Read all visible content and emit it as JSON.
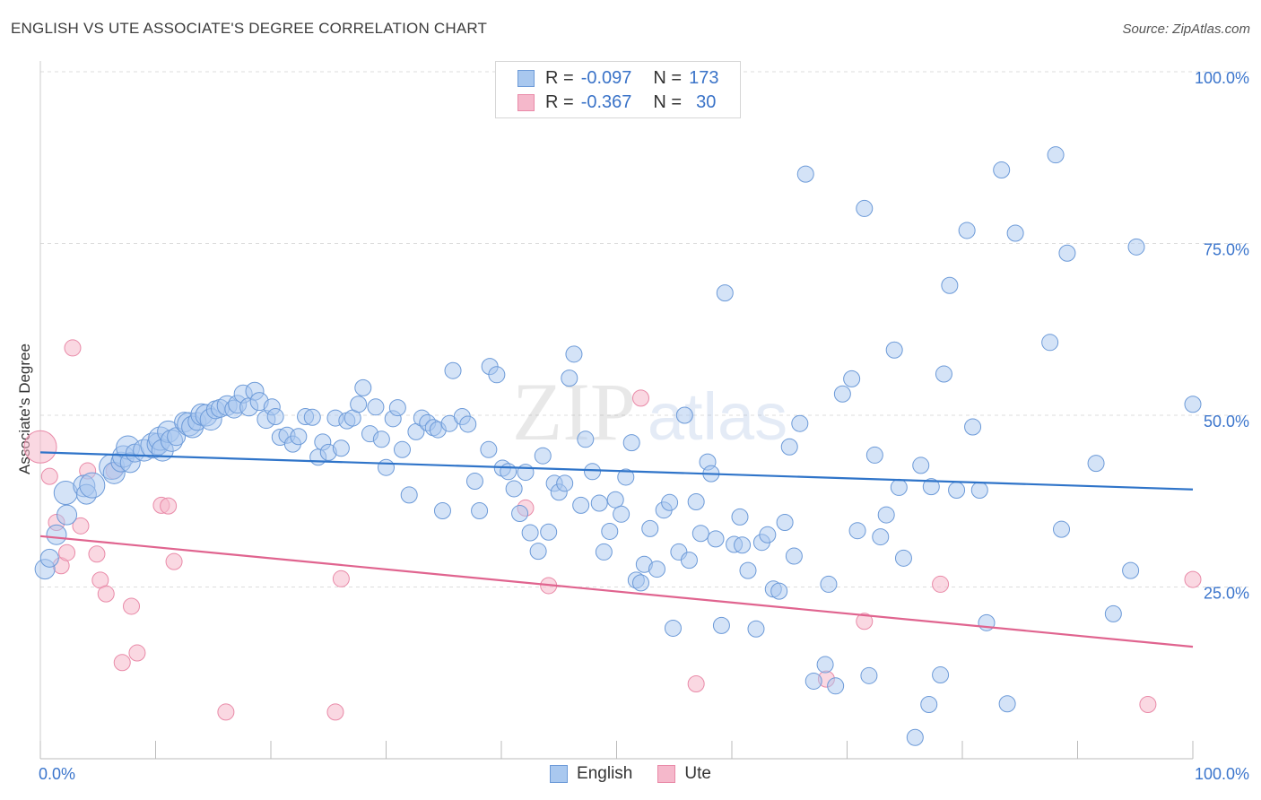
{
  "header": {
    "title": "ENGLISH VS UTE ASSOCIATE'S DEGREE CORRELATION CHART",
    "source": "Source: ZipAtlas.com"
  },
  "watermark": {
    "zip": "ZIP",
    "atlas": "atlas"
  },
  "legend_top": {
    "english": {
      "r_label": "R =",
      "r_value": "-0.097",
      "n_label": "N =",
      "n_value": "173"
    },
    "ute": {
      "r_label": "R =",
      "r_value": "-0.367",
      "n_label": "N =",
      "n_value": "30"
    }
  },
  "legend_bottom": {
    "english": "English",
    "ute": "Ute"
  },
  "colors": {
    "english_fill": "#a9c8ef",
    "english_stroke": "#6c9ad8",
    "english_line": "#2f74c9",
    "ute_fill": "#f5b8cb",
    "ute_stroke": "#e98aa8",
    "ute_line": "#e0648f",
    "tick_label": "#3b75cc",
    "grid": "#dddddd"
  },
  "chart_data": {
    "type": "scatter",
    "title": "ENGLISH VS UTE ASSOCIATE'S DEGREE CORRELATION CHART",
    "xlabel": "",
    "ylabel": "Associate's Degree",
    "xlim": [
      0,
      100
    ],
    "ylim": [
      0,
      100
    ],
    "x_tick_labels": [
      "0.0%",
      "100.0%"
    ],
    "y_tick_labels": [
      "25.0%",
      "50.0%",
      "75.0%",
      "100.0%"
    ],
    "y_ticks": [
      25,
      50,
      75,
      100
    ],
    "grid": true,
    "series": [
      {
        "name": "English",
        "r": -0.097,
        "n": 173,
        "trend": {
          "x": [
            0,
            100
          ],
          "y": [
            44.6,
            39.2
          ]
        },
        "points": [
          [
            0.4,
            27.6,
            11
          ],
          [
            0.8,
            29.2,
            10
          ],
          [
            1.4,
            32.6,
            11
          ],
          [
            2.2,
            38.7,
            13
          ],
          [
            2.3,
            35.5,
            11
          ],
          [
            3.8,
            39.7,
            12
          ],
          [
            4.0,
            38.5,
            11
          ],
          [
            4.5,
            39.8,
            14
          ],
          [
            6.2,
            42.5,
            14
          ],
          [
            6.4,
            41.6,
            12
          ],
          [
            7.0,
            43.2,
            11
          ],
          [
            7.2,
            44.0,
            12
          ],
          [
            7.6,
            45.3,
            13
          ],
          [
            7.8,
            43.1,
            11
          ],
          [
            8.2,
            44.5,
            10
          ],
          [
            9.0,
            44.9,
            12
          ],
          [
            9.8,
            45.6,
            14
          ],
          [
            10.2,
            45.8,
            12
          ],
          [
            10.4,
            46.6,
            13
          ],
          [
            10.6,
            44.9,
            12
          ],
          [
            11.1,
            47.6,
            12
          ],
          [
            11.4,
            46.3,
            12
          ],
          [
            11.8,
            46.9,
            10
          ],
          [
            12.5,
            49.0,
            11
          ],
          [
            12.9,
            48.7,
            13
          ],
          [
            13.2,
            48.3,
            12
          ],
          [
            13.6,
            49.1,
            10
          ],
          [
            14.0,
            50.1,
            12
          ],
          [
            14.4,
            50.0,
            12
          ],
          [
            14.8,
            49.4,
            12
          ],
          [
            15.2,
            50.8,
            10
          ],
          [
            15.6,
            51.0,
            10
          ],
          [
            16.2,
            51.4,
            11
          ],
          [
            16.8,
            50.9,
            10
          ],
          [
            17.1,
            51.6,
            10
          ],
          [
            17.6,
            53.1,
            10
          ],
          [
            18.1,
            51.2,
            10
          ],
          [
            18.6,
            53.5,
            10
          ],
          [
            19.0,
            52.0,
            10
          ],
          [
            19.6,
            49.4,
            10
          ],
          [
            20.1,
            51.2,
            9
          ],
          [
            20.4,
            49.8,
            9
          ],
          [
            20.8,
            46.8,
            9
          ],
          [
            21.4,
            47.1,
            9
          ],
          [
            21.9,
            45.8,
            9
          ],
          [
            22.4,
            46.9,
            9
          ],
          [
            23.0,
            49.8,
            9
          ],
          [
            23.6,
            49.7,
            9
          ],
          [
            24.1,
            43.9,
            9
          ],
          [
            24.5,
            46.1,
            9
          ],
          [
            25.0,
            44.6,
            9
          ],
          [
            25.6,
            49.6,
            9
          ],
          [
            26.1,
            45.2,
            9
          ],
          [
            26.6,
            49.2,
            9
          ],
          [
            27.1,
            49.6,
            9
          ],
          [
            27.6,
            51.6,
            9
          ],
          [
            28.0,
            54.0,
            9
          ],
          [
            28.6,
            47.3,
            9
          ],
          [
            29.1,
            51.2,
            9
          ],
          [
            29.6,
            46.5,
            9
          ],
          [
            30.0,
            42.4,
            9
          ],
          [
            30.6,
            49.5,
            9
          ],
          [
            31.0,
            51.1,
            9
          ],
          [
            31.4,
            45.0,
            9
          ],
          [
            32.0,
            38.4,
            9
          ],
          [
            32.6,
            47.6,
            9
          ],
          [
            33.1,
            49.6,
            9
          ],
          [
            33.6,
            48.9,
            9
          ],
          [
            34.1,
            48.2,
            9
          ],
          [
            34.5,
            47.9,
            9
          ],
          [
            34.9,
            36.1,
            9
          ],
          [
            35.5,
            48.8,
            9
          ],
          [
            35.8,
            56.5,
            9
          ],
          [
            36.6,
            49.8,
            9
          ],
          [
            37.1,
            48.7,
            9
          ],
          [
            37.7,
            40.4,
            9
          ],
          [
            38.1,
            36.1,
            9
          ],
          [
            38.9,
            45.0,
            9
          ],
          [
            39.0,
            57.1,
            9
          ],
          [
            39.6,
            55.9,
            9
          ],
          [
            40.1,
            42.3,
            9
          ],
          [
            40.6,
            41.8,
            9
          ],
          [
            41.1,
            39.3,
            9
          ],
          [
            41.6,
            35.7,
            9
          ],
          [
            42.1,
            41.7,
            9
          ],
          [
            42.5,
            32.9,
            9
          ],
          [
            43.2,
            30.2,
            9
          ],
          [
            43.6,
            44.1,
            9
          ],
          [
            44.1,
            33.0,
            9
          ],
          [
            44.6,
            40.1,
            9
          ],
          [
            45.0,
            38.8,
            9
          ],
          [
            45.5,
            40.1,
            9
          ],
          [
            45.9,
            55.4,
            9
          ],
          [
            46.3,
            58.9,
            9
          ],
          [
            46.9,
            36.9,
            9
          ],
          [
            47.3,
            46.5,
            9
          ],
          [
            47.9,
            41.8,
            9
          ],
          [
            48.5,
            37.2,
            9
          ],
          [
            48.9,
            30.1,
            9
          ],
          [
            49.4,
            33.1,
            9
          ],
          [
            49.9,
            37.7,
            9
          ],
          [
            50.4,
            35.6,
            9
          ],
          [
            50.8,
            41.0,
            9
          ],
          [
            51.3,
            46.0,
            9
          ],
          [
            51.7,
            26.0,
            9
          ],
          [
            52.1,
            25.6,
            9
          ],
          [
            52.4,
            28.3,
            9
          ],
          [
            52.9,
            33.5,
            9
          ],
          [
            53.5,
            27.6,
            9
          ],
          [
            54.1,
            36.2,
            9
          ],
          [
            54.6,
            37.3,
            9
          ],
          [
            54.9,
            19.0,
            9
          ],
          [
            55.4,
            30.1,
            9
          ],
          [
            55.9,
            50.0,
            9
          ],
          [
            56.3,
            28.9,
            9
          ],
          [
            56.9,
            37.4,
            9
          ],
          [
            57.3,
            32.8,
            9
          ],
          [
            57.9,
            43.2,
            9
          ],
          [
            58.2,
            41.5,
            9
          ],
          [
            58.6,
            32.0,
            9
          ],
          [
            59.1,
            19.4,
            9
          ],
          [
            59.4,
            67.8,
            9
          ],
          [
            60.2,
            31.2,
            9
          ],
          [
            60.7,
            35.2,
            9
          ],
          [
            60.9,
            31.1,
            9
          ],
          [
            61.4,
            27.4,
            9
          ],
          [
            62.1,
            18.9,
            9
          ],
          [
            62.6,
            31.5,
            9
          ],
          [
            63.1,
            32.6,
            9
          ],
          [
            63.6,
            24.7,
            9
          ],
          [
            64.1,
            24.4,
            9
          ],
          [
            64.6,
            34.4,
            9
          ],
          [
            65.0,
            45.4,
            9
          ],
          [
            65.4,
            29.5,
            9
          ],
          [
            65.9,
            48.8,
            9
          ],
          [
            66.4,
            85.1,
            9
          ],
          [
            67.1,
            11.3,
            9
          ],
          [
            68.1,
            13.7,
            9
          ],
          [
            68.4,
            25.4,
            9
          ],
          [
            69.0,
            10.6,
            9
          ],
          [
            69.6,
            53.1,
            9
          ],
          [
            70.4,
            55.3,
            9
          ],
          [
            70.9,
            33.2,
            9
          ],
          [
            71.5,
            80.1,
            9
          ],
          [
            71.9,
            12.1,
            9
          ],
          [
            72.4,
            44.2,
            9
          ],
          [
            72.9,
            32.3,
            9
          ],
          [
            73.4,
            35.5,
            9
          ],
          [
            74.1,
            59.5,
            9
          ],
          [
            74.5,
            39.5,
            9
          ],
          [
            74.9,
            29.2,
            9
          ],
          [
            75.9,
            3.1,
            9
          ],
          [
            76.4,
            42.7,
            9
          ],
          [
            77.1,
            7.9,
            9
          ],
          [
            77.3,
            39.6,
            9
          ],
          [
            78.1,
            12.2,
            9
          ],
          [
            78.4,
            56.0,
            9
          ],
          [
            78.9,
            68.9,
            9
          ],
          [
            79.5,
            39.1,
            9
          ],
          [
            80.4,
            76.9,
            9
          ],
          [
            80.9,
            48.3,
            9
          ],
          [
            81.5,
            39.1,
            9
          ],
          [
            82.1,
            19.8,
            9
          ],
          [
            83.4,
            85.7,
            9
          ],
          [
            83.9,
            8.0,
            9
          ],
          [
            84.6,
            76.5,
            9
          ],
          [
            87.6,
            60.6,
            9
          ],
          [
            88.1,
            87.9,
            9
          ],
          [
            88.6,
            33.4,
            9
          ],
          [
            89.1,
            73.6,
            9
          ],
          [
            91.6,
            43.0,
            9
          ],
          [
            93.1,
            21.1,
            9
          ],
          [
            94.6,
            27.4,
            9
          ],
          [
            95.1,
            74.5,
            9
          ],
          [
            100.0,
            51.6,
            9
          ]
        ]
      },
      {
        "name": "Ute",
        "r": -0.367,
        "n": 30,
        "trend": {
          "x": [
            0,
            100
          ],
          "y": [
            32.4,
            16.3
          ]
        },
        "points": [
          [
            0.0,
            45.4,
            18
          ],
          [
            0.8,
            41.1,
            9
          ],
          [
            1.4,
            34.4,
            9
          ],
          [
            1.8,
            28.1,
            9
          ],
          [
            2.3,
            30.0,
            9
          ],
          [
            2.8,
            59.8,
            9
          ],
          [
            3.5,
            33.9,
            9
          ],
          [
            4.1,
            41.9,
            9
          ],
          [
            4.9,
            29.8,
            9
          ],
          [
            5.2,
            26.0,
            9
          ],
          [
            5.7,
            24.0,
            9
          ],
          [
            6.4,
            41.9,
            9
          ],
          [
            7.1,
            14.0,
            9
          ],
          [
            7.9,
            22.2,
            9
          ],
          [
            8.4,
            15.4,
            9
          ],
          [
            10.5,
            36.9,
            9
          ],
          [
            11.1,
            36.8,
            9
          ],
          [
            11.6,
            28.7,
            9
          ],
          [
            16.1,
            6.8,
            9
          ],
          [
            26.1,
            26.2,
            9
          ],
          [
            25.6,
            6.8,
            9
          ],
          [
            42.1,
            36.5,
            9
          ],
          [
            44.1,
            25.2,
            9
          ],
          [
            52.1,
            52.5,
            9
          ],
          [
            56.9,
            10.9,
            9
          ],
          [
            68.2,
            11.6,
            9
          ],
          [
            71.5,
            20.0,
            9
          ],
          [
            78.1,
            25.4,
            9
          ],
          [
            96.1,
            7.9,
            9
          ],
          [
            100.0,
            26.1,
            9
          ]
        ]
      }
    ]
  }
}
